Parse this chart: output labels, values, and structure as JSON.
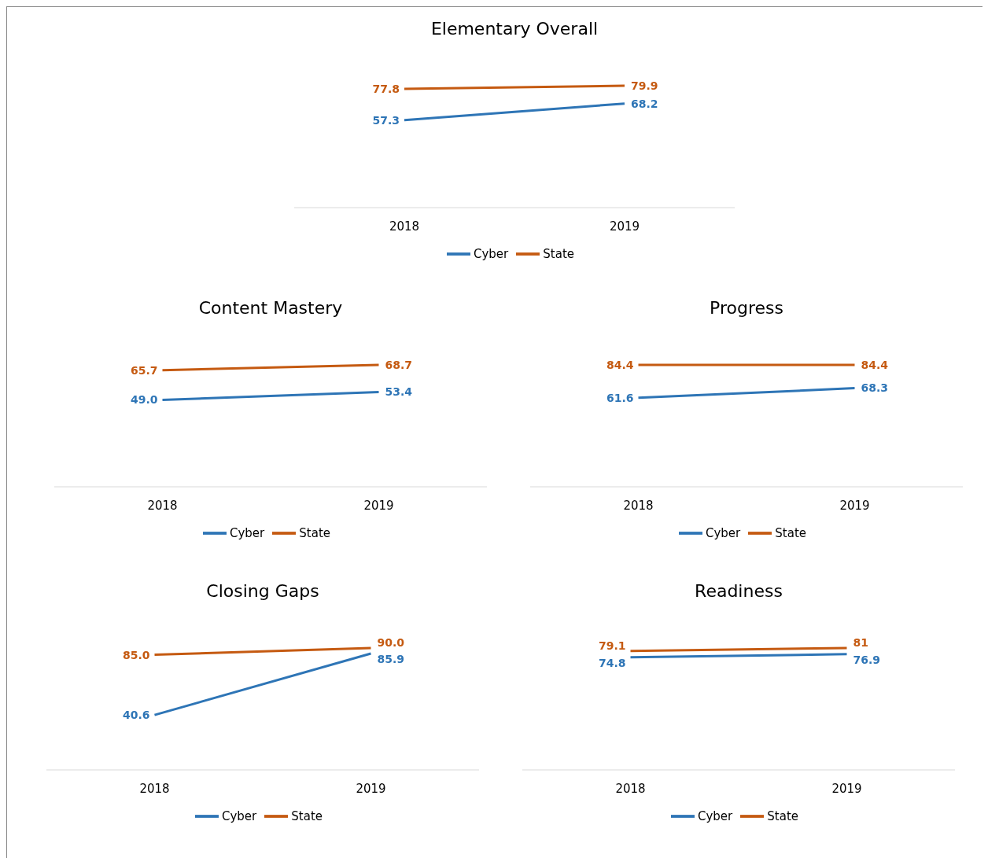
{
  "chart_data": [
    {
      "type": "line",
      "title": "Elementary Overall",
      "categories": [
        "2018",
        "2019"
      ],
      "series": [
        {
          "name": "Cyber",
          "color": "#2e75b6",
          "values": [
            57.3,
            68.2
          ],
          "value_labels": [
            "57.3",
            "68.2"
          ]
        },
        {
          "name": "State",
          "color": "#c55a11",
          "values": [
            77.8,
            79.9
          ],
          "value_labels": [
            "77.8",
            "79.9"
          ]
        }
      ],
      "tick_labels": "x",
      "legend": "bottom"
    },
    {
      "type": "line",
      "title": "Content Mastery",
      "categories": [
        "2018",
        "2019"
      ],
      "series": [
        {
          "name": "Cyber",
          "color": "#2e75b6",
          "values": [
            49.0,
            53.4
          ],
          "value_labels": [
            "49.0",
            "53.4"
          ]
        },
        {
          "name": "State",
          "color": "#c55a11",
          "values": [
            65.7,
            68.7
          ],
          "value_labels": [
            "65.7",
            "68.7"
          ]
        }
      ],
      "tick_labels": "x",
      "legend": "bottom"
    },
    {
      "type": "line",
      "title": "Progress",
      "categories": [
        "2018",
        "2019"
      ],
      "series": [
        {
          "name": "Cyber",
          "color": "#2e75b6",
          "values": [
            61.6,
            68.3
          ],
          "value_labels": [
            "61.6",
            "68.3"
          ]
        },
        {
          "name": "State",
          "color": "#c55a11",
          "values": [
            84.4,
            84.4
          ],
          "value_labels": [
            "84.4",
            "84.4"
          ]
        }
      ],
      "tick_labels": "x",
      "legend": "bottom"
    },
    {
      "type": "line",
      "title": "Closing Gaps",
      "categories": [
        "2018",
        "2019"
      ],
      "series": [
        {
          "name": "Cyber",
          "color": "#2e75b6",
          "values": [
            40.6,
            85.9
          ],
          "value_labels": [
            "40.6",
            "85.9"
          ]
        },
        {
          "name": "State",
          "color": "#c55a11",
          "values": [
            85.0,
            90.0
          ],
          "value_labels": [
            "85.0",
            "90.0"
          ]
        }
      ],
      "tick_labels": "x",
      "legend": "bottom"
    },
    {
      "type": "line",
      "title": "Readiness",
      "categories": [
        "2018",
        "2019"
      ],
      "series": [
        {
          "name": "Cyber",
          "color": "#2e75b6",
          "values": [
            74.8,
            76.9
          ],
          "value_labels": [
            "74.8",
            "76.9"
          ]
        },
        {
          "name": "State",
          "color": "#c55a11",
          "values": [
            79.1,
            81
          ],
          "value_labels": [
            "79.1",
            "81"
          ]
        }
      ],
      "tick_labels": "x",
      "legend": "bottom"
    }
  ]
}
